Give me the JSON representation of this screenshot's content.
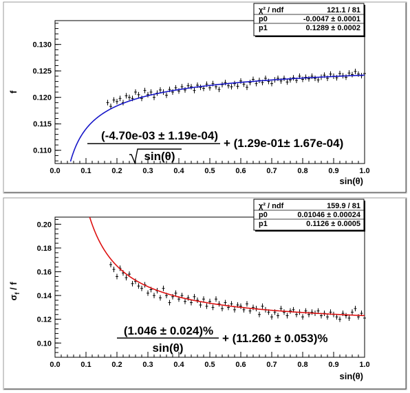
{
  "chart_data": [
    {
      "type": "scatter",
      "xlabel": "sin(θ)",
      "ylabel": "f",
      "xlim": [
        0.0,
        1.0
      ],
      "ylim": [
        0.1075,
        0.1345
      ],
      "xticks": [
        "0.0",
        "0.1",
        "0.2",
        "0.3",
        "0.4",
        "0.5",
        "0.6",
        "0.7",
        "0.8",
        "0.9",
        "1.0"
      ],
      "yticks": [
        "0.110",
        "0.115",
        "0.120",
        "0.125",
        "0.130"
      ],
      "grid": false,
      "fit_color": "#1515c8",
      "fit": {
        "p0": -0.0047,
        "p1": 0.1289,
        "form": "p0/sqrt(x) + p1"
      },
      "stats": [
        {
          "label": "χ² / ndf",
          "value": "121.1 / 81"
        },
        {
          "label": "p0",
          "value": "-0.0047 ± 0.0001"
        },
        {
          "label": "p1",
          "value": "0.1289 ± 0.0002"
        }
      ],
      "formula": {
        "numerator": "(-4.70e-03 ± 1.19e-04)",
        "denominator": "sin(θ)",
        "constant": "+ (1.29e-01± 1.67e-04)"
      },
      "points": {
        "x": [
          0.17,
          0.18,
          0.19,
          0.2,
          0.21,
          0.22,
          0.23,
          0.24,
          0.25,
          0.26,
          0.27,
          0.28,
          0.29,
          0.3,
          0.31,
          0.32,
          0.33,
          0.34,
          0.35,
          0.36,
          0.37,
          0.38,
          0.39,
          0.4,
          0.41,
          0.42,
          0.43,
          0.44,
          0.45,
          0.46,
          0.47,
          0.48,
          0.49,
          0.5,
          0.51,
          0.52,
          0.53,
          0.54,
          0.55,
          0.56,
          0.57,
          0.58,
          0.59,
          0.6,
          0.61,
          0.62,
          0.63,
          0.64,
          0.65,
          0.66,
          0.67,
          0.68,
          0.69,
          0.7,
          0.71,
          0.72,
          0.73,
          0.74,
          0.75,
          0.76,
          0.77,
          0.78,
          0.79,
          0.8,
          0.81,
          0.82,
          0.83,
          0.84,
          0.85,
          0.86,
          0.87,
          0.88,
          0.89,
          0.9,
          0.91,
          0.92,
          0.93,
          0.94,
          0.95,
          0.96,
          0.97,
          0.98,
          0.99,
          1.0
        ],
        "y": [
          0.119,
          0.1183,
          0.1195,
          0.1192,
          0.1198,
          0.119,
          0.1203,
          0.12,
          0.1198,
          0.121,
          0.1205,
          0.1198,
          0.1213,
          0.1205,
          0.121,
          0.12,
          0.1208,
          0.1214,
          0.121,
          0.1204,
          0.1215,
          0.121,
          0.1218,
          0.1212,
          0.122,
          0.1214,
          0.1222,
          0.122,
          0.1213,
          0.1223,
          0.1219,
          0.1217,
          0.1225,
          0.1218,
          0.1226,
          0.122,
          0.1215,
          0.1224,
          0.1228,
          0.1222,
          0.122,
          0.1226,
          0.1221,
          0.1231,
          0.1225,
          0.1219,
          0.1228,
          0.1234,
          0.1226,
          0.1232,
          0.1228,
          0.1236,
          0.123,
          0.1226,
          0.1233,
          0.1236,
          0.1231,
          0.1236,
          0.1229,
          0.1233,
          0.1237,
          0.1232,
          0.124,
          0.1234,
          0.1238,
          0.1235,
          0.124,
          0.1236,
          0.1233,
          0.1238,
          0.1242,
          0.1236,
          0.1244,
          0.124,
          0.1237,
          0.1245,
          0.1241,
          0.1238,
          0.1246,
          0.1243,
          0.1249,
          0.1244,
          0.1241,
          0.1245
        ]
      }
    },
    {
      "type": "scatter",
      "xlabel": "sin(θ)",
      "ylabel": "σf / f",
      "ylabel_main": "σ",
      "ylabel_sub": "f",
      "ylabel_rest": " / f",
      "xlim": [
        0.0,
        1.0
      ],
      "ylim": [
        0.088,
        0.206
      ],
      "xticks": [
        "0.0",
        "0.1",
        "0.2",
        "0.3",
        "0.4",
        "0.5",
        "0.6",
        "0.7",
        "0.8",
        "0.9",
        "1.0"
      ],
      "yticks": [
        "0.10",
        "0.12",
        "0.14",
        "0.16",
        "0.18",
        "0.20"
      ],
      "grid": false,
      "fit_color": "#dd1010",
      "fit": {
        "p0": 0.01046,
        "p1": 0.1126,
        "form": "p0/x + p1"
      },
      "stats": [
        {
          "label": "χ² / ndf",
          "value": "159.9 / 81"
        },
        {
          "label": "p0",
          "value": "0.01046 ± 0.00024"
        },
        {
          "label": "p1",
          "value": "0.1126 ± 0.0005"
        }
      ],
      "formula": {
        "numerator": "(1.046 ± 0.024)%",
        "denominator": "sin(θ)",
        "constant": "+ (11.260 ± 0.053)%"
      },
      "points": {
        "x": [
          0.18,
          0.19,
          0.2,
          0.21,
          0.22,
          0.23,
          0.24,
          0.25,
          0.26,
          0.27,
          0.28,
          0.29,
          0.3,
          0.31,
          0.32,
          0.33,
          0.34,
          0.35,
          0.36,
          0.37,
          0.38,
          0.39,
          0.4,
          0.41,
          0.42,
          0.43,
          0.44,
          0.45,
          0.46,
          0.47,
          0.48,
          0.49,
          0.5,
          0.51,
          0.52,
          0.53,
          0.54,
          0.55,
          0.56,
          0.57,
          0.58,
          0.59,
          0.6,
          0.61,
          0.62,
          0.63,
          0.64,
          0.65,
          0.66,
          0.67,
          0.68,
          0.69,
          0.7,
          0.71,
          0.72,
          0.73,
          0.74,
          0.75,
          0.76,
          0.77,
          0.78,
          0.79,
          0.8,
          0.81,
          0.82,
          0.83,
          0.84,
          0.85,
          0.86,
          0.87,
          0.88,
          0.89,
          0.9,
          0.91,
          0.92,
          0.93,
          0.94,
          0.95,
          0.96,
          0.97,
          0.98,
          0.99,
          1.0
        ],
        "y": [
          0.166,
          0.162,
          0.156,
          0.163,
          0.159,
          0.155,
          0.158,
          0.15,
          0.152,
          0.148,
          0.146,
          0.149,
          0.142,
          0.145,
          0.14,
          0.144,
          0.138,
          0.146,
          0.14,
          0.134,
          0.139,
          0.142,
          0.137,
          0.14,
          0.135,
          0.138,
          0.134,
          0.139,
          0.136,
          0.132,
          0.137,
          0.131,
          0.135,
          0.13,
          0.137,
          0.133,
          0.129,
          0.134,
          0.13,
          0.133,
          0.128,
          0.132,
          0.131,
          0.128,
          0.133,
          0.127,
          0.13,
          0.129,
          0.124,
          0.131,
          0.128,
          0.126,
          0.122,
          0.126,
          0.123,
          0.129,
          0.126,
          0.123,
          0.127,
          0.128,
          0.124,
          0.126,
          0.122,
          0.127,
          0.124,
          0.126,
          0.125,
          0.127,
          0.123,
          0.125,
          0.122,
          0.126,
          0.124,
          0.122,
          0.12,
          0.125,
          0.123,
          0.121,
          0.126,
          0.129,
          0.122,
          0.125,
          0.121
        ]
      }
    }
  ]
}
